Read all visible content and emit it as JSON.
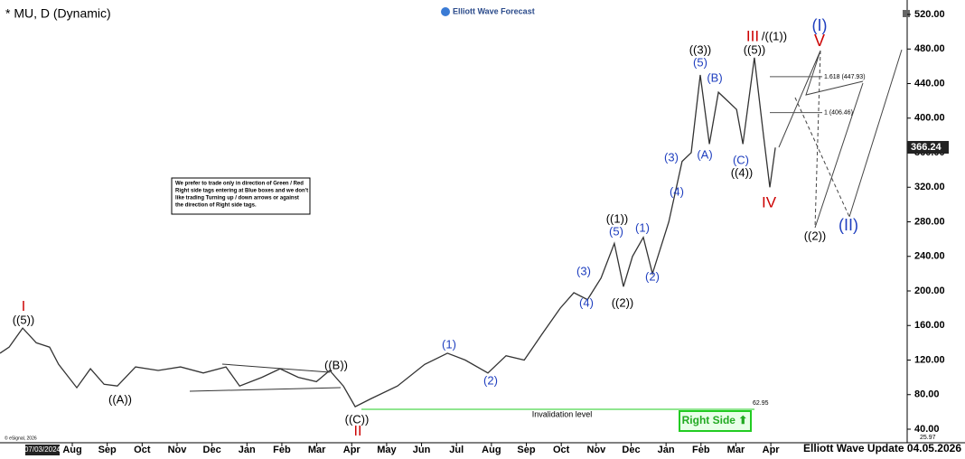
{
  "chart_data": {
    "type": "line",
    "title": "* MU, D (Dynamic)",
    "brand": "Elliott Wave Forecast",
    "footer": "Elliott Wave Update 04.05.2026",
    "start_date": "07/03/2024",
    "copyright": "© eSignal, 2026",
    "notice": [
      "We prefer to trade only in direction of Green / Red",
      "Right side tags entering at Blue boxes and we don't",
      "like trading Turning up / down arrows or against",
      "the direction of Right side tags."
    ],
    "right_side": "Right Side ⬆",
    "last_price": {
      "value": 366.24,
      "label": "366.24"
    },
    "low_price": {
      "value": 25.97,
      "label": "25.97"
    },
    "invalidation": {
      "text": "Invalidation level",
      "value": 62.95,
      "label": "62.95",
      "color": "#22cc22"
    },
    "fib_levels": [
      {
        "value": 447.93,
        "label": "1.618 (447.93)"
      },
      {
        "value": 406.46,
        "label": "1 (406.46)"
      }
    ],
    "series": [
      {
        "name": "MU",
        "color": "#333333",
        "x": [
          -1.07,
          -0.81,
          -0.42,
          -0.03,
          0.35,
          0.61,
          1.13,
          1.52,
          1.91,
          2.29,
          2.81,
          3.46,
          4.1,
          4.75,
          5.4,
          5.79,
          6.43,
          6.95,
          7.47,
          7.99,
          8.37,
          8.76,
          9.1,
          9.54,
          10.31,
          11.09,
          11.74,
          12.25,
          12.9,
          13.42,
          13.94,
          14.45,
          14.97,
          15.36,
          15.75,
          16.14,
          16.52,
          16.78,
          17.04,
          17.35,
          17.61,
          18.08,
          18.46,
          18.72,
          18.98,
          19.24,
          19.5,
          19.76,
          20.02,
          20.2,
          20.53,
          20.79,
          20.97,
          21.13
        ],
        "values": [
          128,
          135,
          157,
          140,
          135,
          115,
          88,
          110,
          92,
          90,
          112,
          108,
          112,
          105,
          112,
          90,
          100,
          110,
          100,
          95,
          108,
          90,
          66,
          75,
          90,
          115,
          128,
          120,
          105,
          125,
          120,
          150,
          180,
          198,
          190,
          215,
          255,
          205,
          240,
          262,
          220,
          280,
          350,
          360,
          450,
          370,
          430,
          420,
          410,
          370,
          470,
          380,
          320,
          366
        ]
      }
    ],
    "xlim": [
      -1.07,
      24.8
    ],
    "xticks": [
      {
        "value": 1,
        "label": "Aug"
      },
      {
        "value": 2,
        "label": "Sep"
      },
      {
        "value": 3,
        "label": "Oct"
      },
      {
        "value": 4,
        "label": "Nov"
      },
      {
        "value": 5,
        "label": "Dec"
      },
      {
        "value": 6,
        "label": "Jan"
      },
      {
        "value": 7,
        "label": "Feb"
      },
      {
        "value": 8,
        "label": "Mar"
      },
      {
        "value": 9,
        "label": "Apr"
      },
      {
        "value": 10,
        "label": "May"
      },
      {
        "value": 11,
        "label": "Jun"
      },
      {
        "value": 12,
        "label": "Jul"
      },
      {
        "value": 13,
        "label": "Aug"
      },
      {
        "value": 14,
        "label": "Sep"
      },
      {
        "value": 15,
        "label": "Oct"
      },
      {
        "value": 16,
        "label": "Nov"
      },
      {
        "value": 17,
        "label": "Dec"
      },
      {
        "value": 18,
        "label": "Jan"
      },
      {
        "value": 19,
        "label": "Feb"
      },
      {
        "value": 20,
        "label": "Mar"
      },
      {
        "value": 21,
        "label": "Apr"
      }
    ],
    "ylim": [
      40,
      520
    ],
    "yticks": [
      {
        "value": 40,
        "label": "40.00"
      },
      {
        "value": 80,
        "label": "80.00"
      },
      {
        "value": 120,
        "label": "120.00"
      },
      {
        "value": 160,
        "label": "160.00"
      },
      {
        "value": 200,
        "label": "200.00"
      },
      {
        "value": 240,
        "label": "240.00"
      },
      {
        "value": 280,
        "label": "280.00"
      },
      {
        "value": 320,
        "label": "320.00"
      },
      {
        "value": 360,
        "label": "360.00"
      },
      {
        "value": 400,
        "label": "400.00"
      },
      {
        "value": 440,
        "label": "440.00"
      },
      {
        "value": 480,
        "label": "480.00"
      },
      {
        "value": 520,
        "label": "520.00"
      }
    ],
    "annotations": [
      {
        "text": "I",
        "color": "#cc0000"
      },
      {
        "text": "((5))",
        "color": "#000000"
      },
      {
        "text": "((A))",
        "color": "#000000"
      },
      {
        "text": "((B))",
        "color": "#000000"
      },
      {
        "text": "((C))",
        "color": "#000000"
      },
      {
        "text": "II",
        "color": "#cc0000"
      },
      {
        "text": "(1)",
        "color": "#1f3fbf"
      },
      {
        "text": "(2)",
        "color": "#1f3fbf"
      },
      {
        "text": "(3)",
        "color": "#1f3fbf"
      },
      {
        "text": "(4)",
        "color": "#1f3fbf"
      },
      {
        "text": "((1))",
        "color": "#000000"
      },
      {
        "text": "(5)",
        "color": "#1f3fbf"
      },
      {
        "text": "((2))",
        "color": "#000000"
      },
      {
        "text": "(1)",
        "color": "#1f3fbf"
      },
      {
        "text": "(2)",
        "color": "#1f3fbf"
      },
      {
        "text": "(3)",
        "color": "#1f3fbf"
      },
      {
        "text": "(4)",
        "color": "#1f3fbf"
      },
      {
        "text": "(A)",
        "color": "#1f3fbf"
      },
      {
        "text": "((3))",
        "color": "#000000"
      },
      {
        "text": "(5)",
        "color": "#1f3fbf"
      },
      {
        "text": "(B)",
        "color": "#1f3fbf"
      },
      {
        "text": "(C)",
        "color": "#1f3fbf"
      },
      {
        "text": "((4))",
        "color": "#000000"
      },
      {
        "text": "III",
        "color": "#cc0000"
      },
      {
        "text": "/((1))",
        "color": "#000000"
      },
      {
        "text": "((5))",
        "color": "#000000"
      },
      {
        "text": "IV",
        "color": "#cc0000"
      },
      {
        "text": "(I)",
        "color": "#1f3fbf"
      },
      {
        "text": "V",
        "color": "#cc0000"
      },
      {
        "text": "((2))",
        "color": "#000000"
      },
      {
        "text": "(II)",
        "color": "#1f3fbf"
      }
    ]
  }
}
